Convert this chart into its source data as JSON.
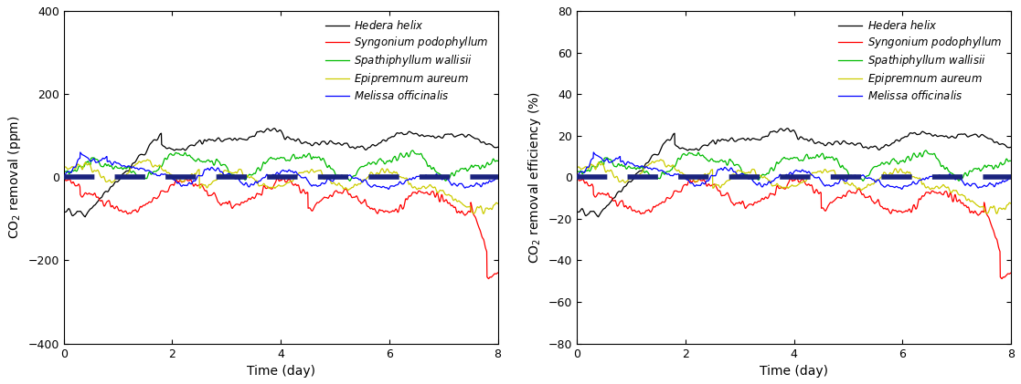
{
  "xlabel": "Time (day)",
  "xlim": [
    0,
    8
  ],
  "ylim_left": [
    -400,
    400
  ],
  "ylim_right": [
    -80,
    80
  ],
  "yticks_left": [
    -400,
    -200,
    0,
    200,
    400
  ],
  "yticks_right": [
    -80,
    -60,
    -40,
    -20,
    0,
    20,
    40,
    60,
    80
  ],
  "xticks": [
    0,
    2,
    4,
    6,
    8
  ],
  "species": [
    "Hedera helix",
    "Syngonium podophyllum",
    "Spathiphyllum wallisii",
    "Epipremnum aureum",
    "Melissa officinalis"
  ],
  "colors": [
    "#000000",
    "#ff0000",
    "#00bb00",
    "#cccc00",
    "#0000ff"
  ],
  "dashed_color": "#1a237e",
  "linewidth": 0.9,
  "legend_fontsize": 8.5,
  "axis_fontsize": 10,
  "tick_fontsize": 9
}
